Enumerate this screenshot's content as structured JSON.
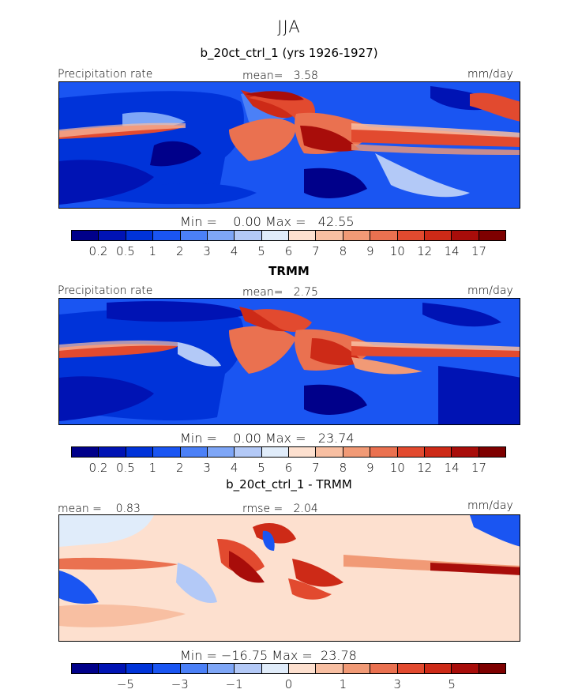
{
  "season": "JJA",
  "chart_data": [
    {
      "type": "heatmap",
      "title": "b_20ct_ctrl_1 (yrs 1926-1927)",
      "left_label": "Precipitation rate",
      "stat_text": "mean=   3.58",
      "units": "mm/day",
      "min_max_text": "Min =    0.00 Max =   42.55",
      "min": 0.0,
      "max": 42.55,
      "mean": 3.58,
      "colorbar": {
        "colors": [
          "#00008a",
          "#0013b4",
          "#0033d9",
          "#1a55f2",
          "#4b80f7",
          "#7ea6f7",
          "#b3c9f7",
          "#e0ecfa",
          "#fde0cf",
          "#f8bfa2",
          "#f19a76",
          "#ea7150",
          "#e24a2f",
          "#cd2a17",
          "#a80d0a",
          "#7e0000"
        ],
        "ticks": [
          "0.2",
          "0.5",
          "1",
          "2",
          "3",
          "4",
          "5",
          "6",
          "7",
          "8",
          "9",
          "10",
          "12",
          "14",
          "17"
        ]
      }
    },
    {
      "type": "heatmap",
      "title": "TRMM",
      "left_label": "Precipitation rate",
      "stat_text": "mean=   2.75",
      "units": "mm/day",
      "min_max_text": "Min =    0.00 Max =   23.74",
      "min": 0.0,
      "max": 23.74,
      "mean": 2.75,
      "colorbar": {
        "colors": [
          "#00008a",
          "#0013b4",
          "#0033d9",
          "#1a55f2",
          "#4b80f7",
          "#7ea6f7",
          "#b3c9f7",
          "#e0ecfa",
          "#fde0cf",
          "#f8bfa2",
          "#f19a76",
          "#ea7150",
          "#e24a2f",
          "#cd2a17",
          "#a80d0a",
          "#7e0000"
        ],
        "ticks": [
          "0.2",
          "0.5",
          "1",
          "2",
          "3",
          "4",
          "5",
          "6",
          "7",
          "8",
          "9",
          "10",
          "12",
          "14",
          "17"
        ]
      }
    },
    {
      "type": "heatmap",
      "title": "b_20ct_ctrl_1 - TRMM",
      "left_label": "mean =    0.83",
      "stat_text": "rmse =   2.04",
      "units": "mm/day",
      "min_max_text": "Min = −16.75 Max =  23.78",
      "min": -16.75,
      "max": 23.78,
      "mean": 0.83,
      "rmse": 2.04,
      "colorbar": {
        "colors": [
          "#00008a",
          "#0013b4",
          "#0033d9",
          "#1a55f2",
          "#4b80f7",
          "#7ea6f7",
          "#b3c9f7",
          "#e0ecfa",
          "#fde0cf",
          "#f8bfa2",
          "#f19a76",
          "#ea7150",
          "#e24a2f",
          "#cd2a17",
          "#a80d0a",
          "#7e0000"
        ],
        "ticks": [
          "−5",
          "−3",
          "−1",
          "0",
          "1",
          "3",
          "5"
        ],
        "tick_boundaries": [
          2,
          4,
          6,
          8,
          10,
          12,
          14
        ]
      }
    }
  ]
}
